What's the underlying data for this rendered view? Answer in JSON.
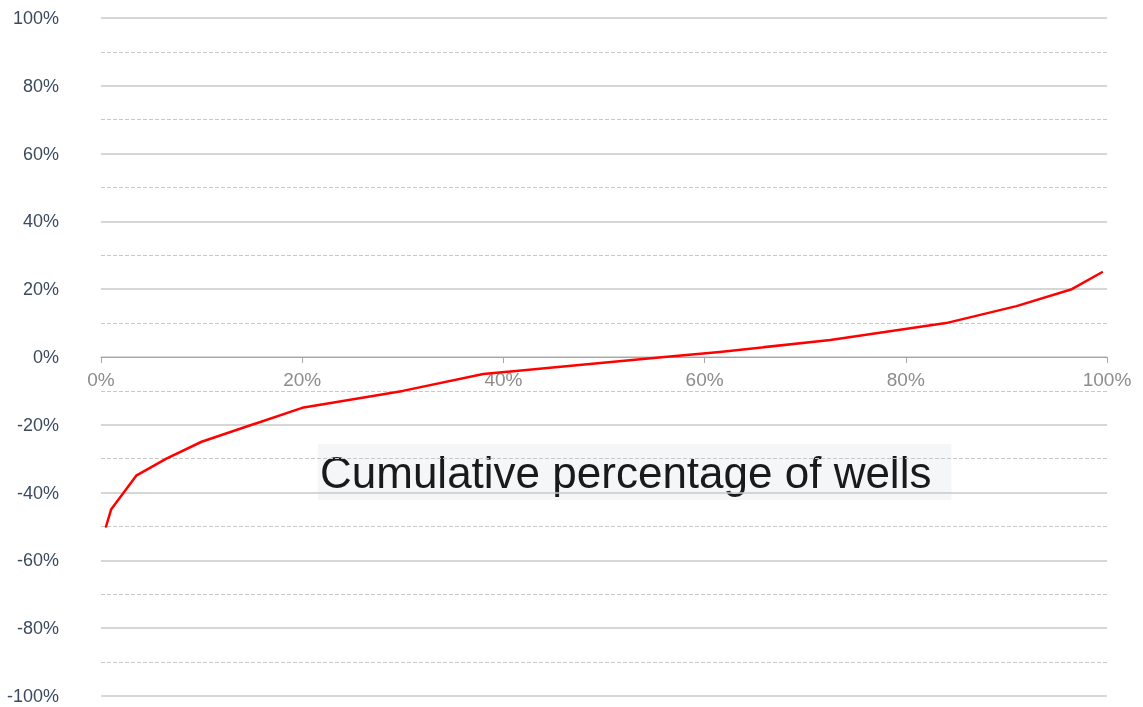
{
  "chart_data": {
    "type": "line",
    "xlabel": "Cumulative percentage of wells",
    "x": [
      0.5,
      1,
      3.5,
      6.5,
      10,
      15,
      20,
      30,
      38,
      47,
      56,
      61.5,
      72.5,
      84,
      91,
      96.5,
      99.5
    ],
    "series": [
      {
        "color": "#ff0000",
        "values": [
          -50,
          -45,
          -35,
          -30,
          -25,
          -20,
          -15,
          -10,
          -5,
          -2.5,
          0,
          1.5,
          5,
          10,
          15,
          20,
          25
        ]
      }
    ],
    "xlim": [
      0,
      100
    ],
    "xticks": [
      {
        "value": 0,
        "label": "0%"
      },
      {
        "value": 20,
        "label": "20%"
      },
      {
        "value": 40,
        "label": "40%"
      },
      {
        "value": 60,
        "label": "60%"
      },
      {
        "value": 80,
        "label": "80%"
      },
      {
        "value": 100,
        "label": "100%"
      }
    ],
    "ylim": [
      -100,
      100
    ],
    "yticks": [
      {
        "value": -100,
        "label": "-100%"
      },
      {
        "value": -90,
        "label": null
      },
      {
        "value": -80,
        "label": "-80%"
      },
      {
        "value": -70,
        "label": null
      },
      {
        "value": -60,
        "label": "-60%"
      },
      {
        "value": -50,
        "label": null
      },
      {
        "value": -40,
        "label": "-40%"
      },
      {
        "value": -30,
        "label": null
      },
      {
        "value": -20,
        "label": "-20%"
      },
      {
        "value": -10,
        "label": null
      },
      {
        "value": 0,
        "label": "0%"
      },
      {
        "value": 10,
        "label": null
      },
      {
        "value": 20,
        "label": "20%"
      },
      {
        "value": 30,
        "label": null
      },
      {
        "value": 40,
        "label": "40%"
      },
      {
        "value": 50,
        "label": null
      },
      {
        "value": 60,
        "label": "60%"
      },
      {
        "value": 70,
        "label": null
      },
      {
        "value": 80,
        "label": "80%"
      },
      {
        "value": 90,
        "label": null
      },
      {
        "value": 100,
        "label": "100%"
      }
    ],
    "grid": "y",
    "marker": "none",
    "line_style": "solid"
  }
}
